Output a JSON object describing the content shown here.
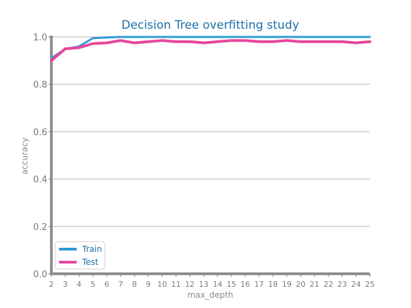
{
  "chart_data": {
    "type": "line",
    "title": "Decision Tree overfitting study",
    "xlabel": "max_depth",
    "ylabel": "accuracy",
    "x": [
      2,
      3,
      4,
      5,
      6,
      7,
      8,
      9,
      10,
      11,
      12,
      13,
      14,
      15,
      16,
      17,
      18,
      19,
      20,
      21,
      22,
      23,
      24,
      25
    ],
    "xlim": [
      2,
      25
    ],
    "ylim": [
      0.0,
      1.0
    ],
    "yticks": [
      "0.0",
      "0.2",
      "0.4",
      "0.6",
      "0.8",
      "1.0"
    ],
    "ytick_values": [
      0.0,
      0.2,
      0.4,
      0.6,
      0.8,
      1.0
    ],
    "grid": "horizontal",
    "legend_position": "lower-left",
    "series": [
      {
        "name": "Train",
        "color": "#2f9bd6",
        "values": [
          0.91,
          0.95,
          0.96,
          0.995,
          0.998,
          1.0,
          1.0,
          1.0,
          1.0,
          1.0,
          1.0,
          1.0,
          1.0,
          1.0,
          1.0,
          1.0,
          1.0,
          1.0,
          1.0,
          1.0,
          1.0,
          1.0,
          1.0,
          1.0
        ]
      },
      {
        "name": "Test",
        "color": "#e6479b",
        "values": [
          0.9,
          0.95,
          0.955,
          0.972,
          0.975,
          0.985,
          0.975,
          0.98,
          0.985,
          0.98,
          0.98,
          0.975,
          0.98,
          0.985,
          0.985,
          0.98,
          0.98,
          0.985,
          0.98,
          0.98,
          0.98,
          0.98,
          0.975,
          0.98
        ]
      }
    ]
  }
}
